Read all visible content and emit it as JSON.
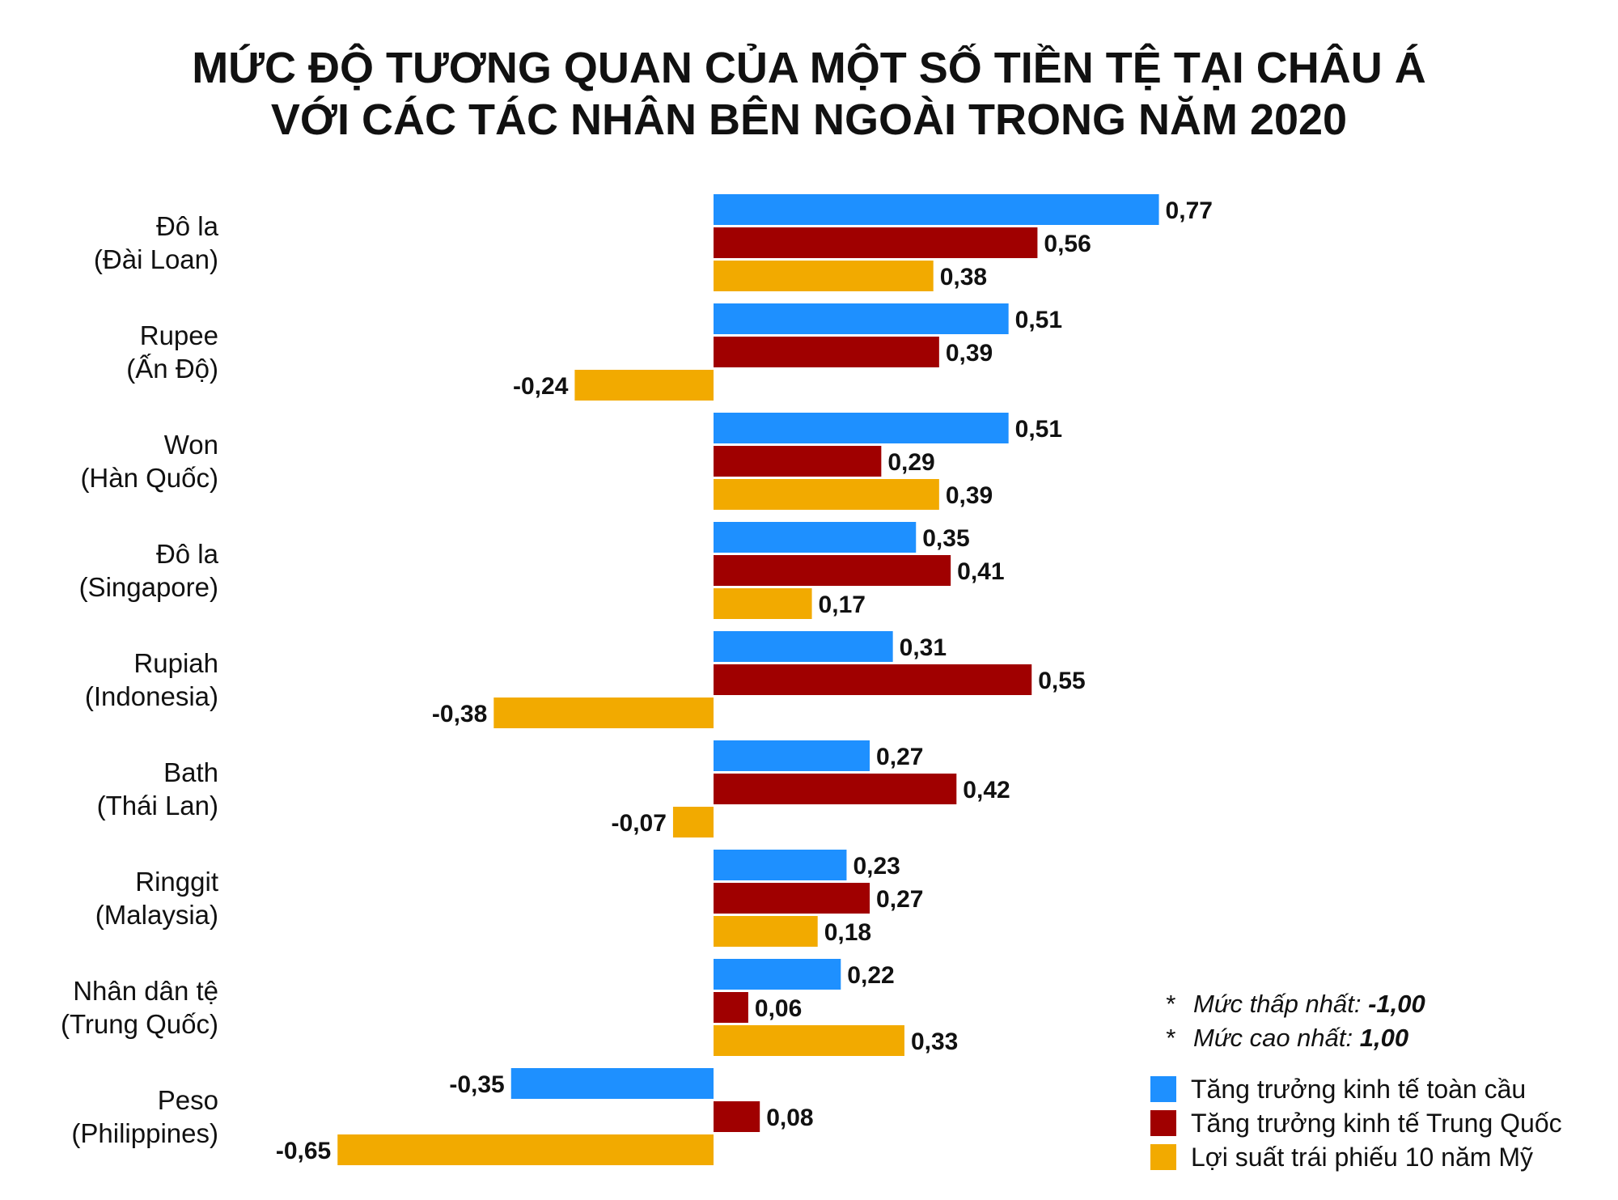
{
  "chart_data": {
    "type": "bar",
    "orientation": "horizontal",
    "title": [
      "MỨC ĐỘ TƯƠNG QUAN CỦA MỘT SỐ TIỀN TỆ TẠI CHÂU Á",
      "VỚI CÁC TÁC NHÂN BÊN NGOÀI TRONG NĂM 2020"
    ],
    "categories": [
      [
        "Đô la",
        "(Đài Loan)"
      ],
      [
        "Rupee",
        "(Ấn Độ)"
      ],
      [
        "Won",
        "(Hàn Quốc)"
      ],
      [
        "Đô la",
        "(Singapore)"
      ],
      [
        "Rupiah",
        "(Indonesia)"
      ],
      [
        "Bath",
        "(Thái Lan)"
      ],
      [
        "Ringgit",
        "(Malaysia)"
      ],
      [
        "Nhân dân tệ",
        "(Trung Quốc)"
      ],
      [
        "Peso",
        "(Philippines)"
      ]
    ],
    "series": [
      {
        "name": "Tăng trưởng kinh tế toàn cầu",
        "color": "#1e90ff",
        "values": [
          0.77,
          0.51,
          0.51,
          0.35,
          0.31,
          0.27,
          0.23,
          0.22,
          -0.35
        ],
        "labels": [
          "0,77",
          "0,51",
          "0,51",
          "0,35",
          "0,31",
          "0,27",
          "0,23",
          "0,22",
          "-0,35"
        ]
      },
      {
        "name": "Tăng trưởng kinh tế Trung Quốc",
        "color": "#a00000",
        "values": [
          0.56,
          0.39,
          0.29,
          0.41,
          0.55,
          0.42,
          0.27,
          0.06,
          0.08
        ],
        "labels": [
          "0,56",
          "0,39",
          "0,29",
          "0,41",
          "0,55",
          "0,42",
          "0,27",
          "0,06",
          "0,08"
        ]
      },
      {
        "name": "Lợi suất trái phiếu 10 năm Mỹ",
        "color": "#f2aa00",
        "values": [
          0.38,
          -0.24,
          0.39,
          0.17,
          -0.38,
          -0.07,
          0.18,
          0.33,
          -0.65
        ],
        "labels": [
          "0,38",
          "-0,24",
          "0,39",
          "0,17",
          "-0,38",
          "-0,07",
          "0,18",
          "0,33",
          "-0,65"
        ]
      }
    ],
    "notes": [
      {
        "bullet": "*",
        "text": "Mức thấp nhất: ",
        "value": "-1,00"
      },
      {
        "bullet": "*",
        "text": "Mức cao nhất: ",
        "value": "1,00"
      }
    ],
    "legend_position": "bottom-right"
  }
}
